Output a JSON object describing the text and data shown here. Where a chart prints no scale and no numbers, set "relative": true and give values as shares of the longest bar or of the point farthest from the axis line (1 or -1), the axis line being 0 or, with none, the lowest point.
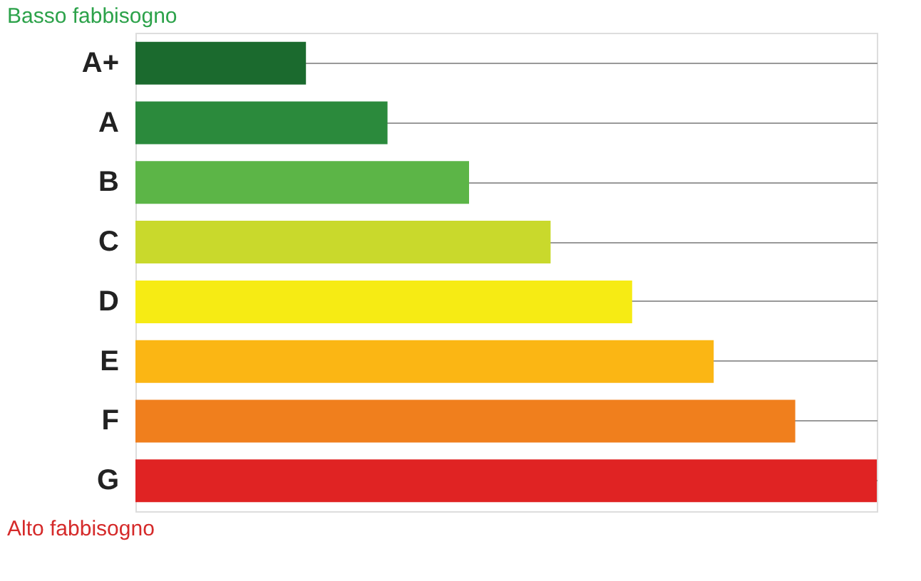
{
  "chart_data": {
    "type": "bar",
    "orientation": "horizontal",
    "relative": true,
    "categories": [
      "A+",
      "A",
      "B",
      "C",
      "D",
      "E",
      "F",
      "G"
    ],
    "values": [
      0.23,
      0.34,
      0.45,
      0.56,
      0.67,
      0.78,
      0.89,
      1
    ],
    "colors": [
      "#1b6a2e",
      "#2b8a3c",
      "#5cb547",
      "#c9d92c",
      "#f6eb14",
      "#fbb614",
      "#f07f1d",
      "#e02323"
    ],
    "grid": "y",
    "annotations": [
      "Basso fabbisogno",
      "Alto fabbisogno"
    ]
  }
}
